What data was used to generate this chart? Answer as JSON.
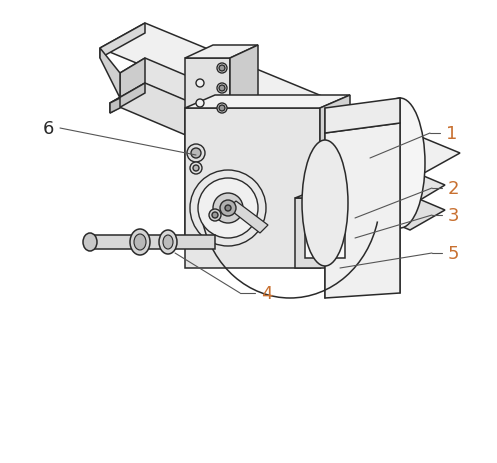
{
  "bg_color": "#ffffff",
  "line_color": "#2a2a2a",
  "label_orange": "#c87030",
  "label_black": "#2a2a2a",
  "figsize": [
    4.97,
    4.64
  ],
  "dpi": 100
}
